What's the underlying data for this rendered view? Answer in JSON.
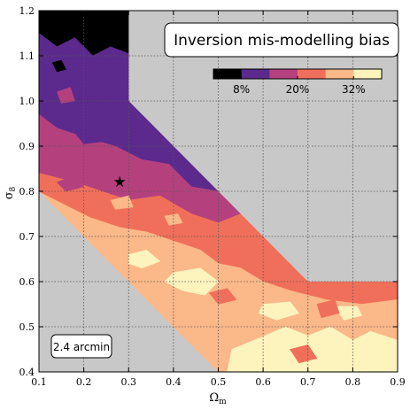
{
  "chart_data": {
    "type": "heatmap",
    "title": "Inversion mis-modelling bias",
    "xlabel": "Ω",
    "xlabel_sub": "m",
    "ylabel": "σ",
    "ylabel_sub": "8",
    "xlim": [
      0.1,
      0.9
    ],
    "ylim": [
      0.4,
      1.2
    ],
    "x_ticks": [
      "0.1",
      "0.2",
      "0.3",
      "0.4",
      "0.5",
      "0.6",
      "0.7",
      "0.8",
      "0.9"
    ],
    "y_ticks": [
      "0.4",
      "0.5",
      "0.6",
      "0.7",
      "0.8",
      "0.9",
      "1.0",
      "1.1",
      "1.2"
    ],
    "grid": true,
    "colorbar": {
      "levels": [
        "<8%",
        "8–14%",
        "14–20%",
        "20–26%",
        "26–32%",
        ">32%"
      ],
      "colors": [
        "#000000",
        "#5b2a8c",
        "#b4417e",
        "#f06f5a",
        "#fbb888",
        "#fcf3bd"
      ],
      "tick_labels": [
        "8%",
        "20%",
        "32%"
      ]
    },
    "annotation": "2.4 arcmin",
    "fiducial_marker": {
      "x": 0.28,
      "y": 0.82,
      "symbol": "★"
    },
    "background_color": "#c8c8c8",
    "sampled_region": [
      {
        "x": 0.1,
        "y": 1.2
      },
      {
        "x": 0.3,
        "y": 1.2
      },
      {
        "x": 0.3,
        "y": 1.0
      },
      {
        "x": 0.7,
        "y": 0.6
      },
      {
        "x": 0.9,
        "y": 0.6
      },
      {
        "x": 0.9,
        "y": 0.4
      },
      {
        "x": 0.5,
        "y": 0.4
      },
      {
        "x": 0.1,
        "y": 0.8
      }
    ],
    "bias_bands": [
      {
        "level": 0,
        "polygon": [
          {
            "x": 0.1,
            "y": 1.2
          },
          {
            "x": 0.3,
            "y": 1.2
          },
          {
            "x": 0.3,
            "y": 1.105
          },
          {
            "x": 0.26,
            "y": 1.12
          },
          {
            "x": 0.22,
            "y": 1.1
          },
          {
            "x": 0.18,
            "y": 1.14
          },
          {
            "x": 0.14,
            "y": 1.12
          },
          {
            "x": 0.1,
            "y": 1.15
          }
        ]
      },
      {
        "level": 1,
        "polygon": [
          {
            "x": 0.1,
            "y": 1.15
          },
          {
            "x": 0.14,
            "y": 1.12
          },
          {
            "x": 0.18,
            "y": 1.14
          },
          {
            "x": 0.22,
            "y": 1.1
          },
          {
            "x": 0.26,
            "y": 1.12
          },
          {
            "x": 0.3,
            "y": 1.105
          },
          {
            "x": 0.3,
            "y": 1.0
          },
          {
            "x": 0.5,
            "y": 0.8
          },
          {
            "x": 0.44,
            "y": 0.81
          },
          {
            "x": 0.39,
            "y": 0.86
          },
          {
            "x": 0.33,
            "y": 0.87
          },
          {
            "x": 0.27,
            "y": 0.9
          },
          {
            "x": 0.2,
            "y": 0.92
          },
          {
            "x": 0.14,
            "y": 0.94
          },
          {
            "x": 0.1,
            "y": 0.97
          }
        ]
      },
      {
        "level": 2,
        "polygon": [
          {
            "x": 0.1,
            "y": 0.97
          },
          {
            "x": 0.14,
            "y": 0.94
          },
          {
            "x": 0.2,
            "y": 0.92
          },
          {
            "x": 0.27,
            "y": 0.9
          },
          {
            "x": 0.33,
            "y": 0.87
          },
          {
            "x": 0.39,
            "y": 0.86
          },
          {
            "x": 0.44,
            "y": 0.81
          },
          {
            "x": 0.5,
            "y": 0.8
          },
          {
            "x": 0.55,
            "y": 0.75
          },
          {
            "x": 0.5,
            "y": 0.73
          },
          {
            "x": 0.44,
            "y": 0.75
          },
          {
            "x": 0.37,
            "y": 0.79
          },
          {
            "x": 0.3,
            "y": 0.78
          },
          {
            "x": 0.24,
            "y": 0.8
          },
          {
            "x": 0.18,
            "y": 0.82
          },
          {
            "x": 0.1,
            "y": 0.84
          }
        ]
      },
      {
        "level": 3,
        "polygon": [
          {
            "x": 0.1,
            "y": 0.84
          },
          {
            "x": 0.18,
            "y": 0.82
          },
          {
            "x": 0.24,
            "y": 0.8
          },
          {
            "x": 0.3,
            "y": 0.78
          },
          {
            "x": 0.37,
            "y": 0.79
          },
          {
            "x": 0.44,
            "y": 0.75
          },
          {
            "x": 0.5,
            "y": 0.73
          },
          {
            "x": 0.55,
            "y": 0.75
          },
          {
            "x": 0.7,
            "y": 0.6
          },
          {
            "x": 0.9,
            "y": 0.6
          },
          {
            "x": 0.9,
            "y": 0.56
          },
          {
            "x": 0.82,
            "y": 0.55
          },
          {
            "x": 0.74,
            "y": 0.56
          },
          {
            "x": 0.66,
            "y": 0.58
          },
          {
            "x": 0.6,
            "y": 0.6
          },
          {
            "x": 0.55,
            "y": 0.63
          },
          {
            "x": 0.5,
            "y": 0.64
          },
          {
            "x": 0.46,
            "y": 0.67
          },
          {
            "x": 0.4,
            "y": 0.69
          },
          {
            "x": 0.34,
            "y": 0.71
          },
          {
            "x": 0.28,
            "y": 0.72
          },
          {
            "x": 0.22,
            "y": 0.74
          },
          {
            "x": 0.1,
            "y": 0.8
          }
        ]
      },
      {
        "level": 4,
        "polygon": [
          {
            "x": 0.22,
            "y": 0.74
          },
          {
            "x": 0.28,
            "y": 0.72
          },
          {
            "x": 0.34,
            "y": 0.71
          },
          {
            "x": 0.4,
            "y": 0.69
          },
          {
            "x": 0.46,
            "y": 0.67
          },
          {
            "x": 0.5,
            "y": 0.64
          },
          {
            "x": 0.55,
            "y": 0.63
          },
          {
            "x": 0.6,
            "y": 0.6
          },
          {
            "x": 0.66,
            "y": 0.58
          },
          {
            "x": 0.74,
            "y": 0.56
          },
          {
            "x": 0.82,
            "y": 0.55
          },
          {
            "x": 0.9,
            "y": 0.56
          },
          {
            "x": 0.9,
            "y": 0.4
          },
          {
            "x": 0.5,
            "y": 0.4
          },
          {
            "x": 0.16,
            "y": 0.74
          }
        ]
      },
      {
        "level": 5,
        "polygon": [
          {
            "x": 0.52,
            "y": 0.4
          },
          {
            "x": 0.9,
            "y": 0.4
          },
          {
            "x": 0.9,
            "y": 0.47
          },
          {
            "x": 0.84,
            "y": 0.49
          },
          {
            "x": 0.8,
            "y": 0.47
          },
          {
            "x": 0.75,
            "y": 0.5
          },
          {
            "x": 0.7,
            "y": 0.48
          },
          {
            "x": 0.65,
            "y": 0.5
          },
          {
            "x": 0.58,
            "y": 0.47
          },
          {
            "x": 0.53,
            "y": 0.45
          }
        ]
      },
      {
        "level": 5,
        "polygon": [
          {
            "x": 0.4,
            "y": 0.62
          },
          {
            "x": 0.46,
            "y": 0.63
          },
          {
            "x": 0.5,
            "y": 0.6
          },
          {
            "x": 0.47,
            "y": 0.57
          },
          {
            "x": 0.42,
            "y": 0.58
          },
          {
            "x": 0.38,
            "y": 0.6
          }
        ]
      },
      {
        "level": 5,
        "polygon": [
          {
            "x": 0.3,
            "y": 0.66
          },
          {
            "x": 0.34,
            "y": 0.67
          },
          {
            "x": 0.37,
            "y": 0.645
          },
          {
            "x": 0.33,
            "y": 0.63
          },
          {
            "x": 0.3,
            "y": 0.64
          }
        ]
      },
      {
        "level": 5,
        "polygon": [
          {
            "x": 0.6,
            "y": 0.55
          },
          {
            "x": 0.66,
            "y": 0.555
          },
          {
            "x": 0.68,
            "y": 0.53
          },
          {
            "x": 0.63,
            "y": 0.515
          },
          {
            "x": 0.59,
            "y": 0.53
          }
        ]
      },
      {
        "level": 5,
        "polygon": [
          {
            "x": 0.76,
            "y": 0.545
          },
          {
            "x": 0.81,
            "y": 0.545
          },
          {
            "x": 0.82,
            "y": 0.525
          },
          {
            "x": 0.78,
            "y": 0.515
          }
        ]
      },
      {
        "level": 3,
        "polygon": [
          {
            "x": 0.66,
            "y": 0.45
          },
          {
            "x": 0.7,
            "y": 0.46
          },
          {
            "x": 0.72,
            "y": 0.43
          },
          {
            "x": 0.68,
            "y": 0.42
          }
        ]
      },
      {
        "level": 3,
        "polygon": [
          {
            "x": 0.72,
            "y": 0.55
          },
          {
            "x": 0.76,
            "y": 0.56
          },
          {
            "x": 0.77,
            "y": 0.53
          },
          {
            "x": 0.73,
            "y": 0.52
          }
        ]
      },
      {
        "level": 2,
        "polygon": [
          {
            "x": 0.14,
            "y": 0.82
          },
          {
            "x": 0.18,
            "y": 0.835
          },
          {
            "x": 0.2,
            "y": 0.81
          },
          {
            "x": 0.16,
            "y": 0.8
          }
        ]
      },
      {
        "level": 1,
        "polygon": [
          {
            "x": 0.18,
            "y": 0.93
          },
          {
            "x": 0.22,
            "y": 0.94
          },
          {
            "x": 0.24,
            "y": 0.91
          },
          {
            "x": 0.2,
            "y": 0.905
          }
        ]
      },
      {
        "level": 0,
        "polygon": [
          {
            "x": 0.13,
            "y": 1.085
          },
          {
            "x": 0.15,
            "y": 1.09
          },
          {
            "x": 0.16,
            "y": 1.07
          },
          {
            "x": 0.14,
            "y": 1.065
          }
        ]
      },
      {
        "level": 2,
        "polygon": [
          {
            "x": 0.14,
            "y": 1.02
          },
          {
            "x": 0.17,
            "y": 1.03
          },
          {
            "x": 0.18,
            "y": 1.0
          },
          {
            "x": 0.15,
            "y": 0.995
          }
        ]
      },
      {
        "level": 4,
        "polygon": [
          {
            "x": 0.26,
            "y": 0.78
          },
          {
            "x": 0.3,
            "y": 0.79
          },
          {
            "x": 0.31,
            "y": 0.765
          },
          {
            "x": 0.27,
            "y": 0.76
          }
        ]
      },
      {
        "level": 4,
        "polygon": [
          {
            "x": 0.38,
            "y": 0.745
          },
          {
            "x": 0.41,
            "y": 0.75
          },
          {
            "x": 0.42,
            "y": 0.73
          },
          {
            "x": 0.39,
            "y": 0.725
          }
        ]
      },
      {
        "level": 3,
        "polygon": [
          {
            "x": 0.48,
            "y": 0.575
          },
          {
            "x": 0.52,
            "y": 0.585
          },
          {
            "x": 0.54,
            "y": 0.56
          },
          {
            "x": 0.5,
            "y": 0.55
          }
        ]
      }
    ]
  }
}
